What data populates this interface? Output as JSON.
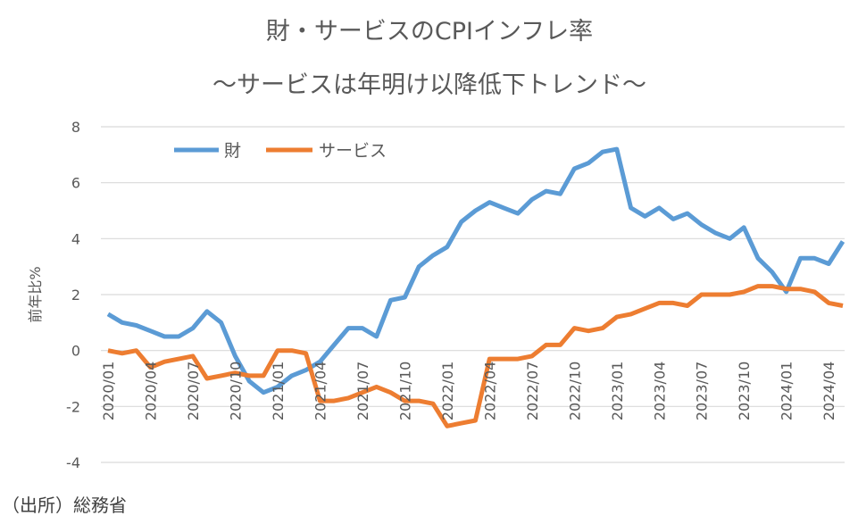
{
  "chart_data": {
    "type": "line",
    "title": "財・サービスのCPIインフレ率",
    "subtitle": "～サービスは年明け以降低下トレンド～",
    "ylabel": "前年比%",
    "xlabel": "",
    "ylim": [
      -4,
      8
    ],
    "yticks": [
      "8",
      "6",
      "4",
      "2",
      "0",
      "-2",
      "-4"
    ],
    "ytick_values": [
      8,
      6,
      4,
      2,
      0,
      -2,
      -4
    ],
    "x": [
      "2020/01",
      "2020/02",
      "2020/03",
      "2020/04",
      "2020/05",
      "2020/06",
      "2020/07",
      "2020/08",
      "2020/09",
      "2020/10",
      "2020/11",
      "2020/12",
      "2021/01",
      "2021/02",
      "2021/03",
      "2021/04",
      "2021/05",
      "2021/06",
      "2021/07",
      "2021/08",
      "2021/09",
      "2021/10",
      "2021/11",
      "2021/12",
      "2022/01",
      "2022/02",
      "2022/03",
      "2022/04",
      "2022/05",
      "2022/06",
      "2022/07",
      "2022/08",
      "2022/09",
      "2022/10",
      "2022/11",
      "2022/12",
      "2023/01",
      "2023/02",
      "2023/03",
      "2023/04",
      "2023/05",
      "2023/06",
      "2023/07",
      "2023/08",
      "2023/09",
      "2023/10",
      "2023/11",
      "2023/12",
      "2024/01",
      "2024/02",
      "2024/03",
      "2024/04",
      "2024/05"
    ],
    "xtick_labels": [
      "2020/01",
      "2020/04",
      "2020/07",
      "2020/10",
      "2021/01",
      "2021/04",
      "2021/07",
      "2021/10",
      "2022/01",
      "2022/04",
      "2022/07",
      "2022/10",
      "2023/01",
      "2023/04",
      "2023/07",
      "2023/10",
      "2024/01",
      "2024/04"
    ],
    "grid": true,
    "legend_position": "top-left",
    "series": [
      {
        "name": "財",
        "color": "#5b9bd5",
        "values": [
          1.3,
          1.0,
          0.9,
          0.7,
          0.5,
          0.5,
          0.8,
          1.4,
          1.0,
          -0.2,
          -1.1,
          -1.5,
          -1.3,
          -0.9,
          -0.7,
          -0.4,
          0.2,
          0.8,
          0.8,
          0.5,
          1.8,
          1.9,
          3.0,
          3.4,
          3.7,
          4.6,
          5.0,
          5.3,
          5.1,
          4.9,
          5.4,
          5.7,
          5.6,
          6.5,
          6.7,
          7.1,
          7.2,
          5.1,
          4.8,
          5.1,
          4.7,
          4.9,
          4.5,
          4.2,
          4.0,
          4.4,
          3.3,
          2.8,
          2.1,
          3.3,
          3.3,
          3.1,
          3.9
        ]
      },
      {
        "name": "サービス",
        "color": "#ed7d31",
        "values": [
          0.0,
          -0.1,
          0.0,
          -0.6,
          -0.4,
          -0.3,
          -0.2,
          -1.0,
          -0.9,
          -0.8,
          -0.9,
          -0.9,
          0.0,
          0.0,
          -0.1,
          -1.8,
          -1.8,
          -1.7,
          -1.5,
          -1.3,
          -1.5,
          -1.8,
          -1.8,
          -1.9,
          -2.7,
          -2.6,
          -2.5,
          -0.3,
          -0.3,
          -0.3,
          -0.2,
          0.2,
          0.2,
          0.8,
          0.7,
          0.8,
          1.2,
          1.3,
          1.5,
          1.7,
          1.7,
          1.6,
          2.0,
          2.0,
          2.0,
          2.1,
          2.3,
          2.3,
          2.2,
          2.2,
          2.1,
          1.7,
          1.6
        ]
      }
    ]
  },
  "source_note": "（出所）総務省"
}
